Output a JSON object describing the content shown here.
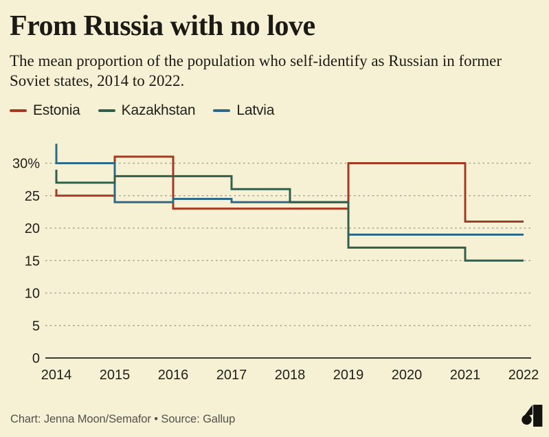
{
  "title": "From Russia with no love",
  "subtitle": "The mean proportion of the population who self-identify as Russian in former Soviet states, 2014 to 2022.",
  "legend": [
    {
      "label": "Estonia",
      "color": "#a33b22"
    },
    {
      "label": "Kazakhstan",
      "color": "#325f4c"
    },
    {
      "label": "Latvia",
      "color": "#2e6a88"
    }
  ],
  "footer": {
    "credit": "Chart: Jenna Moon/Semafor • Source: Gallup",
    "logo_name": "semafor-logo"
  },
  "colors": {
    "background": "#f6f1d4",
    "text": "#1b1a15",
    "axis_text": "#21201b",
    "gridline": "#a3a294",
    "axis_line": "#3c3b33",
    "footer_text": "#52514a",
    "logo": "#14130f"
  },
  "chart_data": {
    "type": "line",
    "step": "before",
    "title": "From Russia with no love",
    "subtitle": "The mean proportion of the population who self-identify as Russian in former Soviet states, 2014 to 2022.",
    "x": [
      2014,
      2015,
      2016,
      2017,
      2018,
      2019,
      2020,
      2021,
      2022
    ],
    "series": [
      {
        "name": "Estonia",
        "color": "#a33b22",
        "values": [
          26,
          25,
          31,
          23,
          23,
          23,
          30,
          30,
          21
        ]
      },
      {
        "name": "Kazakhstan",
        "color": "#325f4c",
        "values": [
          29,
          27,
          28,
          28,
          26,
          24,
          17,
          17,
          15
        ]
      },
      {
        "name": "Latvia",
        "color": "#2e6a88",
        "values": [
          33,
          30,
          24,
          24.5,
          24,
          24,
          19,
          19,
          19
        ]
      }
    ],
    "z_order": [
      "Estonia",
      "Latvia",
      "Kazakhstan"
    ],
    "ylim": [
      0,
      33
    ],
    "yticks": [
      0,
      5,
      10,
      15,
      20,
      25,
      30
    ],
    "ytick_labels": [
      "0",
      "5",
      "10",
      "15",
      "20",
      "25",
      "30%"
    ],
    "xlabel": "",
    "ylabel": "",
    "grid": "horizontal-dashed",
    "legend_position": "top"
  }
}
